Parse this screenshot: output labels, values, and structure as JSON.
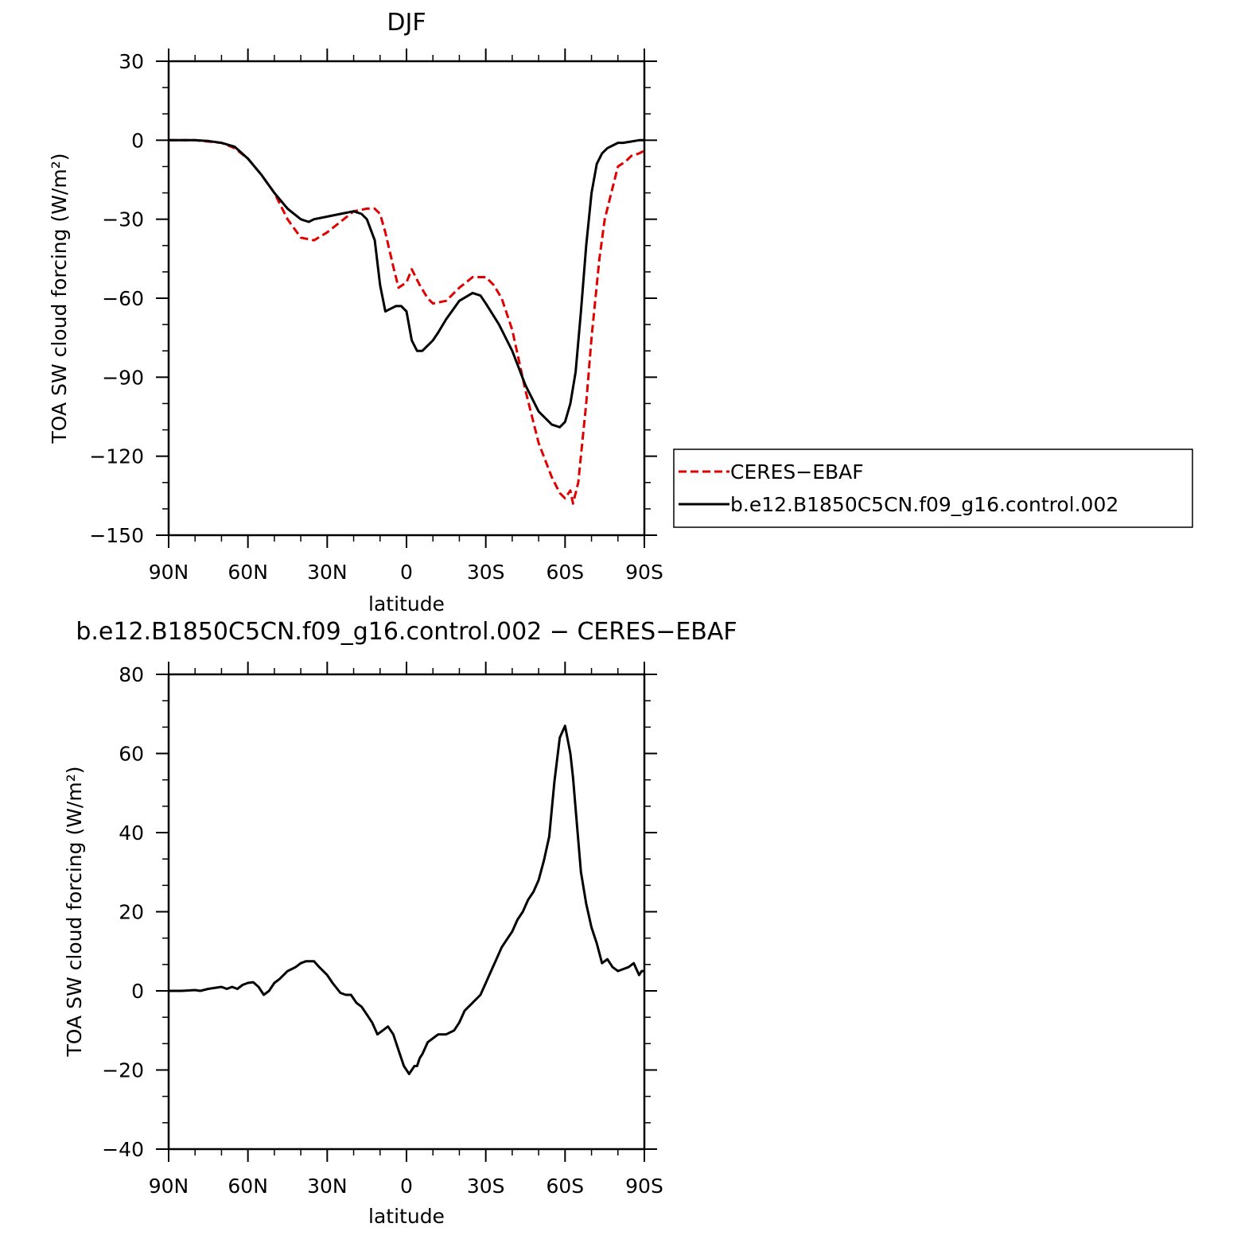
{
  "chart_data": [
    {
      "type": "line",
      "title": "DJF",
      "xlabel": "latitude",
      "ylabel": "TOA SW cloud forcing (W/m²)",
      "xlim": [
        90,
        -90
      ],
      "ylim": [
        -150,
        30
      ],
      "x_ticks": [
        {
          "value": 90,
          "label": "90N"
        },
        {
          "value": 60,
          "label": "60N"
        },
        {
          "value": 30,
          "label": "30N"
        },
        {
          "value": 0,
          "label": "0"
        },
        {
          "value": -30,
          "label": "30S"
        },
        {
          "value": -60,
          "label": "60S"
        },
        {
          "value": -90,
          "label": "90S"
        }
      ],
      "y_ticks": [
        {
          "value": 30,
          "label": "30"
        },
        {
          "value": 0,
          "label": "0"
        },
        {
          "value": -30,
          "label": "−30"
        },
        {
          "value": -60,
          "label": "−60"
        },
        {
          "value": -90,
          "label": "−90"
        },
        {
          "value": -120,
          "label": "−120"
        },
        {
          "value": -150,
          "label": "−150"
        }
      ],
      "legend_position": "right",
      "series": [
        {
          "name": "CERES−EBAF",
          "color": "#e00000",
          "style": "dashed",
          "x": [
            90,
            85,
            80,
            75,
            70,
            65,
            60,
            55,
            50,
            45,
            40,
            35,
            30,
            25,
            20,
            15,
            12,
            10,
            8,
            5,
            3,
            0,
            -2,
            -5,
            -8,
            -10,
            -15,
            -20,
            -25,
            -30,
            -33,
            -36,
            -40,
            -45,
            -50,
            -55,
            -58,
            -60,
            -62,
            -63,
            -65,
            -68,
            -70,
            -73,
            -75,
            -78,
            -80,
            -83,
            -85,
            -88,
            -90
          ],
          "y": [
            0,
            0,
            0,
            -0.5,
            -1,
            -3,
            -7,
            -13,
            -20,
            -30,
            -37,
            -38,
            -35,
            -31,
            -27,
            -26,
            -26,
            -28,
            -35,
            -48,
            -56,
            -54,
            -49,
            -55,
            -60,
            -62,
            -61,
            -56,
            -52,
            -52,
            -55,
            -60,
            -72,
            -95,
            -115,
            -128,
            -134,
            -136,
            -133,
            -138,
            -130,
            -100,
            -75,
            -45,
            -30,
            -18,
            -10,
            -8,
            -6,
            -5,
            -4
          ]
        },
        {
          "name": "b.e12.B1850C5CN.f09_g16.control.002",
          "color": "#000000",
          "style": "solid",
          "x": [
            90,
            85,
            80,
            75,
            70,
            65,
            60,
            55,
            50,
            45,
            40,
            37,
            35,
            30,
            25,
            20,
            17,
            15,
            12,
            10,
            8,
            6,
            4,
            2,
            0,
            -2,
            -4,
            -6,
            -8,
            -10,
            -12,
            -15,
            -20,
            -25,
            -28,
            -30,
            -35,
            -40,
            -45,
            -50,
            -55,
            -58,
            -60,
            -62,
            -64,
            -66,
            -68,
            -70,
            -72,
            -74,
            -76,
            -78,
            -80,
            -82,
            -85,
            -88,
            -90
          ],
          "y": [
            0,
            0,
            0,
            -0.3,
            -1,
            -2.5,
            -7,
            -13,
            -20,
            -26,
            -30,
            -31,
            -30,
            -29,
            -28,
            -27,
            -28,
            -30,
            -38,
            -55,
            -65,
            -64,
            -63,
            -63,
            -65,
            -76,
            -80,
            -80,
            -78,
            -76,
            -73,
            -68,
            -61,
            -58,
            -59,
            -62,
            -70,
            -80,
            -93,
            -103,
            -108,
            -109,
            -107,
            -100,
            -88,
            -65,
            -40,
            -20,
            -9,
            -5,
            -3,
            -2,
            -1,
            -1,
            -0.5,
            0,
            0
          ]
        }
      ]
    },
    {
      "type": "line",
      "title": "b.e12.B1850C5CN.f09_g16.control.002 − CERES−EBAF",
      "xlabel": "latitude",
      "ylabel": "TOA SW cloud forcing (W/m²)",
      "xlim": [
        90,
        -90
      ],
      "ylim": [
        -40,
        80
      ],
      "x_ticks": [
        {
          "value": 90,
          "label": "90N"
        },
        {
          "value": 60,
          "label": "60N"
        },
        {
          "value": 30,
          "label": "30N"
        },
        {
          "value": 0,
          "label": "0"
        },
        {
          "value": -30,
          "label": "30S"
        },
        {
          "value": -60,
          "label": "60S"
        },
        {
          "value": -90,
          "label": "90S"
        }
      ],
      "y_ticks": [
        {
          "value": 80,
          "label": "80"
        },
        {
          "value": 60,
          "label": "60"
        },
        {
          "value": 40,
          "label": "40"
        },
        {
          "value": 20,
          "label": "20"
        },
        {
          "value": 0,
          "label": "0"
        },
        {
          "value": -20,
          "label": "−20"
        },
        {
          "value": -40,
          "label": "−40"
        }
      ],
      "series": [
        {
          "color": "#000000",
          "style": "solid",
          "x": [
            90,
            85,
            80,
            78,
            75,
            70,
            68,
            66,
            64,
            62,
            60,
            58,
            56,
            54,
            52,
            50,
            48,
            45,
            42,
            40,
            38,
            35,
            33,
            30,
            28,
            25,
            23,
            21,
            19,
            17,
            15,
            13,
            11,
            9,
            7,
            5,
            3,
            1,
            -1,
            -2,
            -3,
            -4,
            -5,
            -6,
            -8,
            -10,
            -12,
            -15,
            -18,
            -20,
            -22,
            -25,
            -28,
            -30,
            -32,
            -34,
            -36,
            -38,
            -40,
            -42,
            -44,
            -46,
            -48,
            -50,
            -52,
            -54,
            -56,
            -58,
            -60,
            -62,
            -63,
            -64,
            -66,
            -68,
            -70,
            -72,
            -74,
            -76,
            -78,
            -80,
            -82,
            -84,
            -86,
            -88,
            -89,
            -90
          ],
          "y": [
            0,
            0,
            0.2,
            0,
            0.5,
            1,
            0.5,
            1,
            0.5,
            1.5,
            2,
            2.2,
            1,
            -1,
            0,
            2,
            3,
            5,
            6,
            7,
            7.5,
            7.5,
            6,
            4,
            2,
            -0.5,
            -1,
            -1,
            -3,
            -4,
            -6,
            -8,
            -11,
            -10,
            -9,
            -11,
            -15,
            -19,
            -21,
            -20,
            -19,
            -19,
            -17,
            -16,
            -13,
            -12,
            -11,
            -11,
            -10,
            -8,
            -5,
            -3,
            -1,
            2,
            5,
            8,
            11,
            13,
            15,
            18,
            20,
            23,
            25,
            28,
            33,
            39,
            53,
            64,
            67,
            60,
            54,
            46,
            30,
            22,
            16,
            12,
            7,
            8,
            6,
            5,
            5.5,
            6,
            7,
            4,
            5,
            5
          ]
        }
      ]
    }
  ]
}
